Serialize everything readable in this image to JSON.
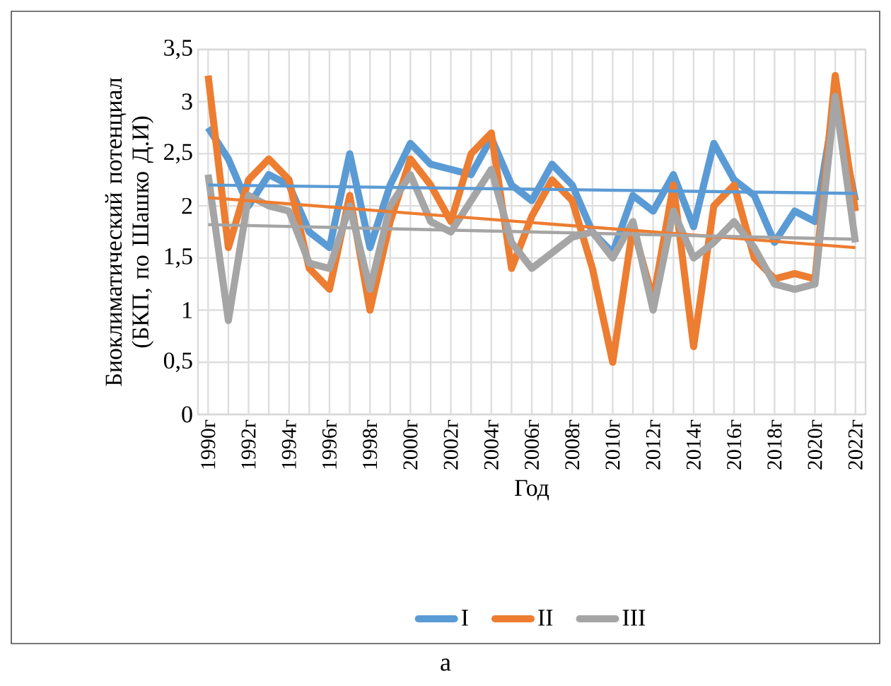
{
  "chart_data": {
    "type": "line",
    "xlabel": "Год",
    "ylabel": "Биоклиматический потенциал (БКП, по Шашко Д.И)",
    "annotations": [
      "а"
    ],
    "categories": [
      "1990г",
      null,
      "1992г",
      null,
      "1994г",
      null,
      "1996г",
      null,
      "1998г",
      null,
      "2000г",
      null,
      "2002г",
      null,
      "2004г",
      null,
      "2006г",
      null,
      "2008г",
      null,
      "2010г",
      null,
      "2012г",
      null,
      "2014г",
      null,
      "2016г",
      null,
      "2018г",
      null,
      "2020г",
      null,
      "2022г"
    ],
    "series": [
      {
        "name": "I",
        "color": "#5b9bd5",
        "values": [
          2.75,
          2.45,
          2.0,
          2.3,
          2.2,
          1.75,
          1.6,
          2.5,
          1.6,
          2.2,
          2.6,
          2.4,
          2.35,
          2.3,
          2.65,
          2.2,
          2.05,
          2.4,
          2.2,
          1.75,
          1.55,
          2.1,
          1.95,
          2.3,
          1.8,
          2.6,
          2.25,
          2.1,
          1.65,
          1.95,
          1.85,
          3.0,
          2.05
        ]
      },
      {
        "name": "II",
        "color": "#ed7d31",
        "values": [
          3.25,
          1.6,
          2.25,
          2.45,
          2.25,
          1.4,
          1.2,
          2.1,
          1.0,
          1.85,
          2.45,
          2.2,
          1.85,
          2.5,
          2.7,
          1.4,
          1.9,
          2.25,
          2.05,
          1.4,
          0.5,
          1.8,
          1.1,
          2.2,
          0.65,
          2.0,
          2.2,
          1.5,
          1.3,
          1.35,
          1.3,
          3.25,
          1.95
        ]
      },
      {
        "name": "III",
        "color": "#a5a5a5",
        "values": [
          2.3,
          0.9,
          2.1,
          2.0,
          1.95,
          1.45,
          1.4,
          2.0,
          1.2,
          2.0,
          2.3,
          1.85,
          1.75,
          2.05,
          2.35,
          1.65,
          1.4,
          1.55,
          1.7,
          1.75,
          1.5,
          1.85,
          1.0,
          1.95,
          1.5,
          1.65,
          1.85,
          1.6,
          1.25,
          1.2,
          1.25,
          3.05,
          1.65
        ]
      },
      {
        "type": "line",
        "color": "#5b9bd5",
        "x": [
          "1990г",
          "2022г"
        ],
        "values": [
          2.2,
          2.12
        ]
      },
      {
        "type": "line",
        "color": "#ed7d31",
        "x": [
          "1990г",
          "2022г"
        ],
        "values": [
          2.08,
          1.6
        ]
      },
      {
        "type": "line",
        "color": "#a5a5a5",
        "x": [
          "1990г",
          "2022г"
        ],
        "values": [
          1.82,
          1.68
        ]
      }
    ],
    "ylim": [
      0,
      3.5
    ],
    "yticks": [
      0,
      {
        "value": 0.5,
        "label": "0,5"
      },
      1,
      {
        "value": 1.5,
        "label": "1,5"
      },
      2,
      {
        "value": 2.5,
        "label": "2,5"
      },
      3,
      {
        "value": 3.5,
        "label": "3,5"
      }
    ],
    "grid": true,
    "legend": "bottom",
    "marker": "none",
    "line_style": "solid"
  }
}
